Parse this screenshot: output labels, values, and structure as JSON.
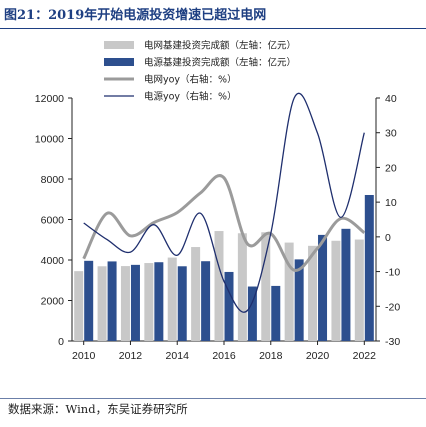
{
  "figure": {
    "title": "图21：2019年开始电源投资增速已超过电网",
    "source": "数据来源：Wind，东吴证券研究所"
  },
  "colors": {
    "title": "#1e3f82",
    "grid_bar": "#c8c8c8",
    "power_bar": "#2d4f8e",
    "grid_line": "#9b9b9b",
    "power_line": "#1f2f6e"
  },
  "chart_data": {
    "type": "bar",
    "x": [
      2010,
      2011,
      2012,
      2013,
      2014,
      2015,
      2016,
      2017,
      2018,
      2019,
      2020,
      2021,
      2022
    ],
    "x_ticks": [
      "2010",
      "2012",
      "2014",
      "2016",
      "2018",
      "2020",
      "2022"
    ],
    "ylim_left": [
      0,
      12000
    ],
    "yticks_left": [
      "0",
      "2000",
      "4000",
      "6000",
      "8000",
      "10000",
      "12000"
    ],
    "ylim_right": [
      -30,
      40
    ],
    "yticks_right": [
      "-30",
      "-20",
      "-10",
      "0",
      "10",
      "20",
      "30",
      "40"
    ],
    "grid": false,
    "legend_position": "top",
    "series": [
      {
        "name": "电网基建投资完成额（左轴：亿元）",
        "kind": "bar",
        "axis": "left",
        "values": [
          3450,
          3690,
          3700,
          3850,
          4120,
          4640,
          5430,
          5320,
          5370,
          4860,
          4700,
          4950,
          5010
        ]
      },
      {
        "name": "电源基建投资完成额（左轴：亿元）",
        "kind": "bar",
        "axis": "left",
        "values": [
          3960,
          3930,
          3760,
          3890,
          3690,
          3940,
          3410,
          2690,
          2720,
          4030,
          5240,
          5540,
          7210
        ]
      },
      {
        "name": "电网yoy（右轴：%）",
        "kind": "line",
        "axis": "right",
        "values": [
          -6.3,
          6.8,
          0.3,
          4.1,
          7.0,
          12.7,
          17.0,
          -2.0,
          0.9,
          -9.6,
          -3.3,
          5.3,
          1.2
        ]
      },
      {
        "name": "电源yoy（右轴：%）",
        "kind": "line",
        "axis": "right",
        "values": [
          4.0,
          -0.8,
          -4.4,
          3.5,
          -5.3,
          6.8,
          -12.8,
          -21.2,
          1.0,
          48.1,
          29.9,
          5.6,
          30.0
        ]
      }
    ]
  }
}
